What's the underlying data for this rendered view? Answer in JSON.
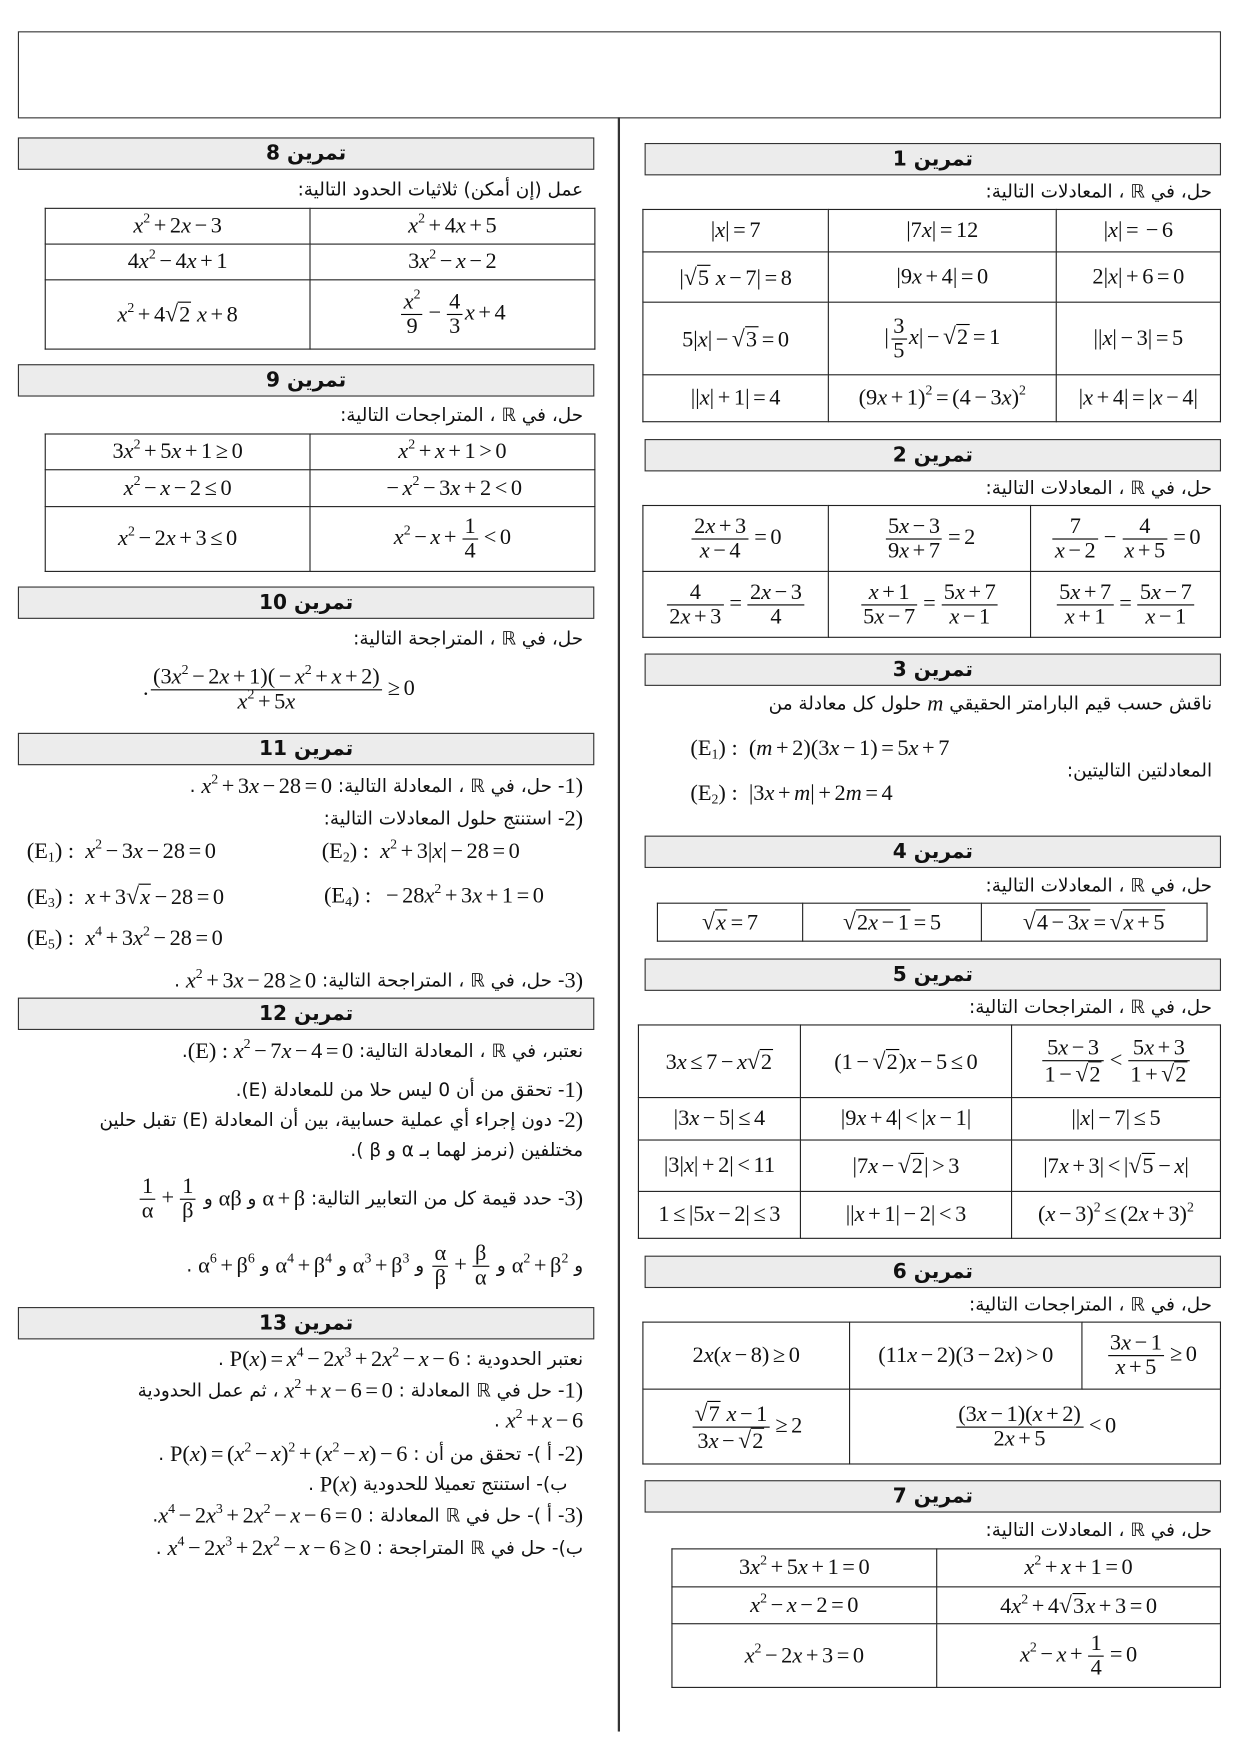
{
  "header": {
    "title": ""
  },
  "sections": [
    {
      "id": "s1",
      "title": "تمرين 1",
      "lines": [
        "حل، في ℝ ، المعادلات التالية:"
      ],
      "table": [
        [
          "|x|=-6",
          "|7x|=12",
          "|x|=7"
        ],
        [
          "2|x|+6=0",
          "|9x+4|=0",
          "|\\sqrt{5} x-7|=8"
        ],
        [
          "||x|-3|=5",
          "|\\frac{3}{5}x|-\\sqrt{2}=1",
          "5|x|-\\sqrt{3}=0"
        ],
        [
          "|x+4|=|x-4|",
          "(9x+1)^{2}=(4-3x)^{2}",
          "||x|+1|=4"
        ]
      ]
    },
    {
      "id": "s2",
      "title": "تمرين 2",
      "lines": [
        "حل، في ℝ ، المعادلات التالية:"
      ],
      "table": [
        [
          "\\frac{7}{x-2}-\\frac{4}{x+5}=0",
          "\\frac{5x-3}{9x+7}=2",
          "\\frac{2x+3}{x-4}=0"
        ],
        [
          "\\frac{5x+7}{x+1}=\\frac{5x-7}{x-1}",
          "\\frac{x+1}{5x-7}=\\frac{5x+7}{x-1}",
          "\\frac{4}{2x+3}=\\frac{2x-3}{4}"
        ]
      ]
    },
    {
      "id": "s3",
      "title": "تمرين 3",
      "lines": [
        "ناقش حسب قيم البارامتر الحقيقي $m$ حلول كل معادلة من",
        "المعادلتين التاليتين:",
        "$(E_{1}) :  (m+2)(3x-1)=5x+7$",
        "$(E_{2}) :  |3x+m|+2m=4$"
      ]
    },
    {
      "id": "s4",
      "title": "تمرين 4",
      "lines": [
        "حل، في ℝ ، المعادلات التالية:"
      ],
      "table": [
        [
          "\\sqrt{4-3x}=\\sqrt{x+5}",
          "\\sqrt{2x-1}=5",
          "\\sqrt{x}=7"
        ]
      ]
    },
    {
      "id": "s5",
      "title": "تمرين 5",
      "lines": [
        "حل، في ℝ ، المتراجحات التالية:"
      ],
      "table": [
        [
          "\\frac{5x-3}{1-\\sqrt{2}}<\\frac{5x+3}{1+\\sqrt{2}}",
          "(1-\\sqrt{2})x-5≤0",
          "3x≤7-x\\sqrt{2}"
        ],
        [
          "||x|-7|≤5",
          "|9x+4|<|x-1|",
          "|3x-5|≤4"
        ],
        [
          "|7x+3|<|\\sqrt{5}-x|",
          "|7x-\\sqrt{2}|>3",
          "|3|x|+2|<11"
        ],
        [
          "(x-3)^{2}≤(2x+3)^{2}",
          "||x+1|-2|<3",
          "1≤|5x-2|≤3"
        ]
      ]
    },
    {
      "id": "s6",
      "title": "تمرين 6",
      "lines": [
        "حل، في ℝ ، المتراجحات التالية:"
      ],
      "table": [
        [
          "\\frac{3x-1}{x+5}≥0",
          "(11x-2)(3-2x)>0",
          "2x(x-8)≥0"
        ],
        [
          {
            "m": "\\frac{(3x-1)(x+2)}{2x+5}<0",
            "colspan": 2
          },
          "\\frac{\\sqrt{7} x-1}{3x-\\sqrt{2}}≥2"
        ]
      ]
    },
    {
      "id": "s7",
      "title": "تمرين 7",
      "lines": [
        "حل، في ℝ ، المعادلات التالية:"
      ],
      "table": [
        [
          "x^{2}+x+1=0",
          "3x^{2}+5x+1=0"
        ],
        [
          "4x^{2}+4\\sqrt{3}x+3=0",
          "x^{2}-x-2=0"
        ],
        [
          "x^{2}-x+\\frac{1}{4}=0",
          "x^{2}-2x+3=0"
        ]
      ]
    },
    {
      "id": "s8",
      "title": "تمرين 8",
      "lines": [
        "عمل (إن أمكن) ثلاثيات الحدود التالية:"
      ],
      "table": [
        [
          "x^{2}+4x+5",
          "x^{2}+2x-3"
        ],
        [
          "3x^{2}-x-2",
          "4x^{2}-4x+1"
        ],
        [
          "\\frac{x^{2}}{9}-\\frac{4}{3}x+4",
          "x^{2}+4\\sqrt{2} x+8"
        ]
      ]
    },
    {
      "id": "s9",
      "title": "تمرين 9",
      "lines": [
        "حل، في ℝ ، المتراجحات التالية:"
      ],
      "table": [
        [
          "x^{2}+x+1>0",
          "3x^{2}+5x+1≥0"
        ],
        [
          "-x^{2}-3x+2<0",
          "x^{2}-x-2≤0"
        ],
        [
          "x^{2}-x+\\frac{1}{4}<0",
          "x^{2}-2x+3≤0"
        ]
      ]
    },
    {
      "id": "s10",
      "title": "تمرين 10",
      "lines": [
        "حل، في ℝ ، المتراجحة التالية:",
        "$.\\frac{(3x^{2}-2x+1)(-x^{2}+x+2)}{x^{2}+5x}≥0$"
      ]
    },
    {
      "id": "s11",
      "title": "تمرين 11",
      "lines": [
        "$1)$- حل، في ℝ ، المعادلة التالية: $x^{2}+3x-28=0$ .",
        "$2)$- استنتج حلول المعادلات التالية:",
        "$(E_{1}) :  x^{2}-3x-28=0$",
        "$(E_{2}) :  x^{2}+3|x|-28=0$",
        "$(E_{3}) :  x+3\\sqrt{x}-28=0$",
        "$(E_{4}) :  -28x^{2}+3x+1=0$",
        "$(E_{5}) :  x^{4}+3x^{2}-28=0$",
        "$3)$- حل، في ℝ ، المتراجحة التالية: $x^{2}+3x-28≥0$ ."
      ]
    },
    {
      "id": "s12",
      "title": "تمرين 12",
      "lines": [
        "نعتبر، في ℝ ، المعادلة التالية: $(E) : x^{2}-7x-4=0$.",
        "$1)$- تحقق من أن 0 ليس حلا من للمعادلة (E).",
        "$2)$- دون إجراء أي عملية حسابية، بين أن المعادلة (E) تقبل حلين",
        "مختلفين (نرمز لهما بـ α و β ).",
        "$3)$- حدد قيمة كل من التعابير التالية: $α+β$ و $αβ$ و $\\frac{1}{α}+\\frac{1}{β}$",
        "و $α^{2}+β^{2}$ و $\\frac{α}{β}+\\frac{β}{α}$ و $α^{3}+β^{3}$ و $α^{4}+β^{4}$ و $α^{6}+β^{6}$ ."
      ]
    },
    {
      "id": "s13",
      "title": "تمرين 13",
      "lines": [
        "نعتبر الحدودية : $P(x)=x^{4}-2x^{3}+2x^{2}-x-6$ .",
        "$1)$- حل في ℝ المعادلة : $x^{2}+x-6=0$ ، ثم عمل الحدودية",
        "$x^{2}+x-6$ .",
        "$2)$- أ )- تحقق من أن : $P(x)=(x^{2}-x)^{2}+(x^{2}-x)-6$ .",
        "ب)- استنتج تعميلا للحدودية $P(x)$ .",
        "$3)$- أ )- حل في ℝ المعادلة : $x^{4}-2x^{3}+2x^{2}-x-6=0$.",
        "ب)- حل في ℝ المتراجحة : $x^{4}-2x^{3}+2x^{2}-x-6≥0$ ."
      ]
    }
  ]
}
